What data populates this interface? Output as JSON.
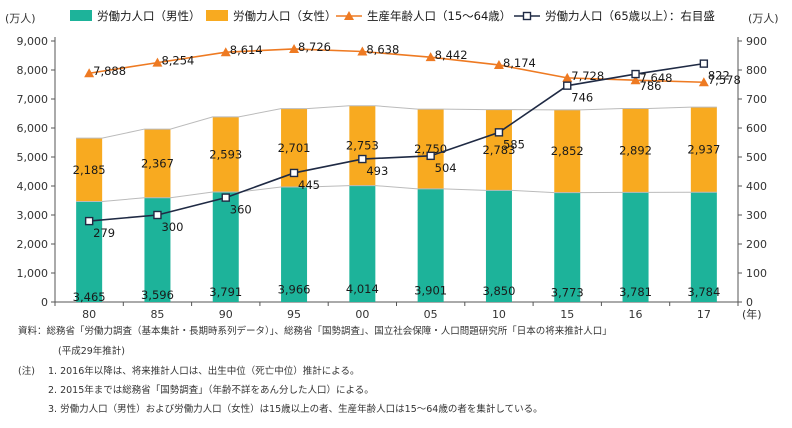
{
  "chart_data": {
    "type": "bar",
    "categories": [
      "80",
      "85",
      "90",
      "95",
      "00",
      "05",
      "10",
      "15",
      "16",
      "17"
    ],
    "x_unit": "(年)",
    "y_left_unit": "(万人)",
    "y_right_unit": "(万人)",
    "y_left_ticks": [
      "0",
      "1,000",
      "2,000",
      "3,000",
      "4,000",
      "5,000",
      "6,000",
      "7,000",
      "8,000",
      "9,000"
    ],
    "y_right_ticks": [
      "0",
      "100",
      "200",
      "300",
      "400",
      "500",
      "600",
      "700",
      "800",
      "900"
    ],
    "ylim_left": [
      0,
      9000
    ],
    "ylim_right": [
      0,
      900
    ],
    "grid": false,
    "legend_position": "top",
    "series": [
      {
        "name": "労働力人口（男性）",
        "type": "bar",
        "axis": "left",
        "stack": "labor",
        "color": "#1db39a",
        "values": [
          3465,
          3596,
          3791,
          3966,
          4014,
          3901,
          3850,
          3773,
          3781,
          3784
        ],
        "labels": [
          "3,465",
          "3,596",
          "3,791",
          "3,966",
          "4,014",
          "3,901",
          "3,850",
          "3,773",
          "3,781",
          "3,784"
        ]
      },
      {
        "name": "労働力人口（女性）",
        "type": "bar",
        "axis": "left",
        "stack": "labor",
        "color": "#f8aa20",
        "values": [
          2185,
          2367,
          2593,
          2701,
          2753,
          2750,
          2783,
          2852,
          2892,
          2937
        ],
        "labels": [
          "2,185",
          "2,367",
          "2,593",
          "2,701",
          "2,753",
          "2,750",
          "2,783",
          "2,852",
          "2,892",
          "2,937"
        ]
      },
      {
        "name": "生産年齢人口（15〜64歳）",
        "type": "line",
        "axis": "left",
        "color": "#ee7a22",
        "marker": "triangle",
        "values": [
          7888,
          8254,
          8614,
          8726,
          8638,
          8442,
          8174,
          7728,
          7648,
          7578
        ],
        "labels": [
          "7,888",
          "8,254",
          "8,614",
          "8,726",
          "8,638",
          "8,442",
          "8,174",
          "7,728",
          "7,648",
          "7,578"
        ]
      },
      {
        "name": "労働力人口（65歳以上）：右目盛",
        "type": "line",
        "axis": "right",
        "color": "#1f2a44",
        "marker": "square",
        "values": [
          279,
          300,
          360,
          445,
          493,
          504,
          585,
          746,
          786,
          822
        ],
        "labels": [
          "279",
          "300",
          "360",
          "445",
          "493",
          "504",
          "585",
          "746",
          "786",
          "822"
        ]
      }
    ]
  },
  "notes": {
    "source_line1": "資料：総務省「労働力調査（基本集計・長期時系列データ）」、総務省「国勢調査」、国立社会保障・人口問題研究所「日本の将来推計人口」",
    "source_line2": "(平成29年推計)",
    "note_label": "(注)",
    "note1": "1. 2016年以降は、将来推計人口は、出生中位（死亡中位）推計による。",
    "note2": "2. 2015年までは総務省「国勢調査」（年齢不詳をあん分した人口）による。",
    "note3": "3. 労働力人口（男性）および労働力人口（女性）は15歳以上の者、生産年齢人口は15〜64歳の者を集計している。"
  }
}
